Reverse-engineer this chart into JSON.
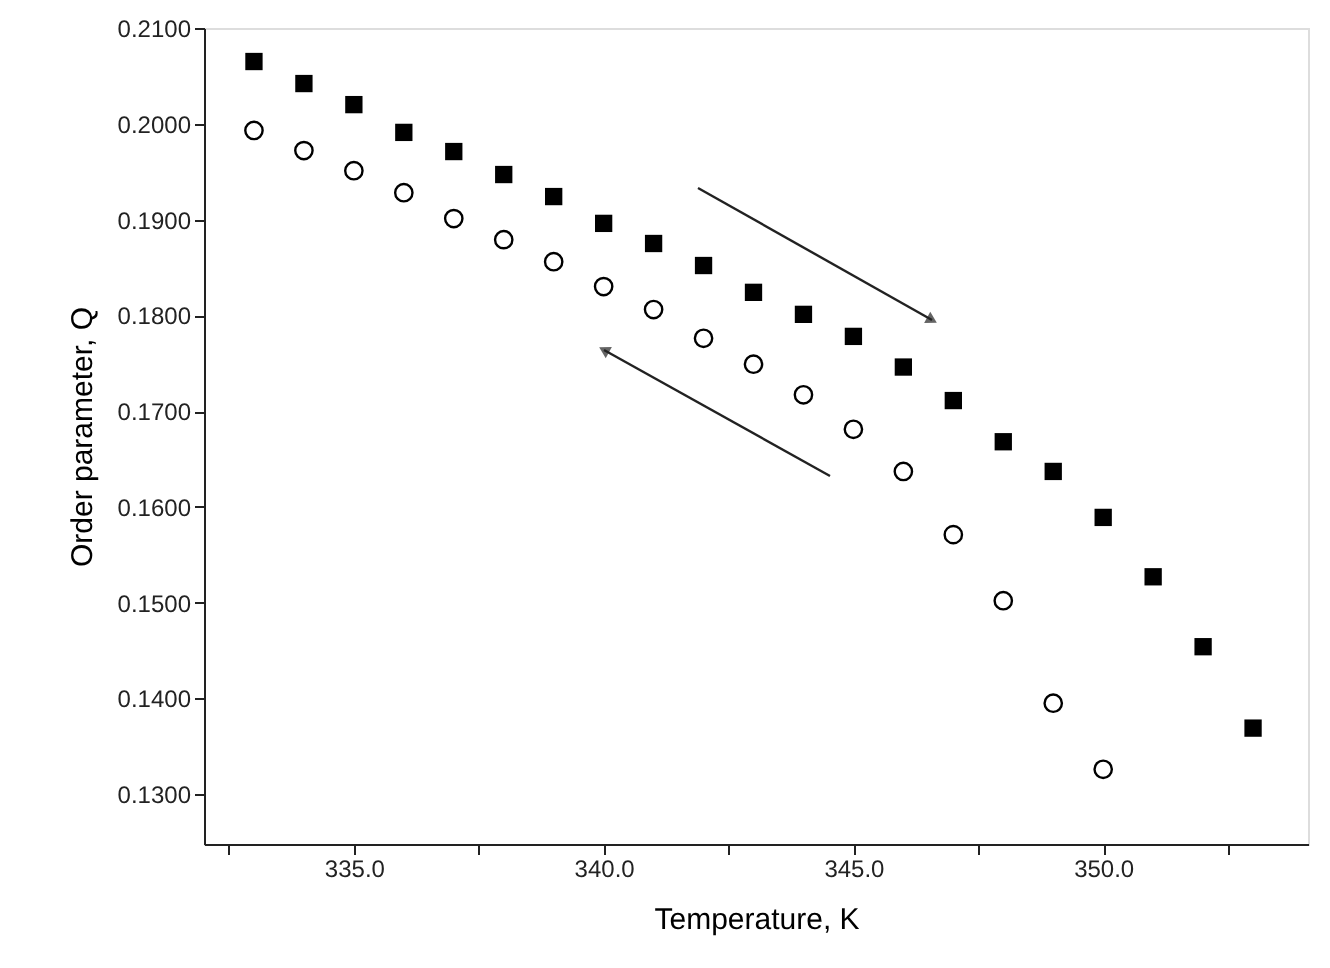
{
  "chart_data": {
    "type": "scatter",
    "xlabel": "Temperature, K",
    "ylabel": "Order parameter, Q",
    "x": [
      333,
      334,
      335,
      336,
      337,
      338,
      339,
      340,
      341,
      342,
      343,
      344,
      345,
      346,
      347,
      348,
      349,
      350,
      351,
      352,
      353
    ],
    "series": [
      {
        "color": "#000000",
        "marker": "square",
        "values": [
          0.2065,
          0.2042,
          0.202,
          0.1991,
          0.1971,
          0.1947,
          0.1924,
          0.1896,
          0.1875,
          0.1852,
          0.1824,
          0.1801,
          0.1778,
          0.1746,
          0.1711,
          0.1668,
          0.1637,
          0.1589,
          0.1527,
          0.1454,
          0.1369
        ]
      },
      {
        "color": "#000000",
        "marker": "circle",
        "values": [
          0.1993,
          0.1972,
          0.1951,
          0.1928,
          0.1901,
          0.1879,
          0.1856,
          0.183,
          0.1806,
          0.1776,
          0.1749,
          0.1717,
          0.1681,
          0.1637,
          0.1571,
          0.1502,
          0.1395,
          0.1326,
          null,
          null,
          null
        ]
      }
    ],
    "xlim": [
      332,
      354.1
    ],
    "xticks": [
      {
        "value": 332.5,
        "label": null
      },
      {
        "value": 335,
        "label": "335.0"
      },
      {
        "value": 337.5,
        "label": null
      },
      {
        "value": 340,
        "label": "340.0"
      },
      {
        "value": 342.5,
        "label": null
      },
      {
        "value": 345,
        "label": "345.0"
      },
      {
        "value": 347.5,
        "label": null
      },
      {
        "value": 350,
        "label": "350.0"
      },
      {
        "value": 352.5,
        "label": null
      }
    ],
    "ylim": [
      0.1248,
      0.21
    ],
    "yticks": [
      {
        "value": 0.13,
        "label": "0.1300"
      },
      {
        "value": 0.14,
        "label": "0.1400"
      },
      {
        "value": 0.15,
        "label": "0.1500"
      },
      {
        "value": 0.16,
        "label": "0.1600"
      },
      {
        "value": 0.17,
        "label": "0.1700"
      },
      {
        "value": 0.18,
        "label": "0.1800"
      },
      {
        "value": 0.19,
        "label": "0.1900"
      },
      {
        "value": 0.2,
        "label": "0.2000"
      },
      {
        "value": 0.21,
        "label": "0.2100"
      }
    ],
    "grid": false
  }
}
